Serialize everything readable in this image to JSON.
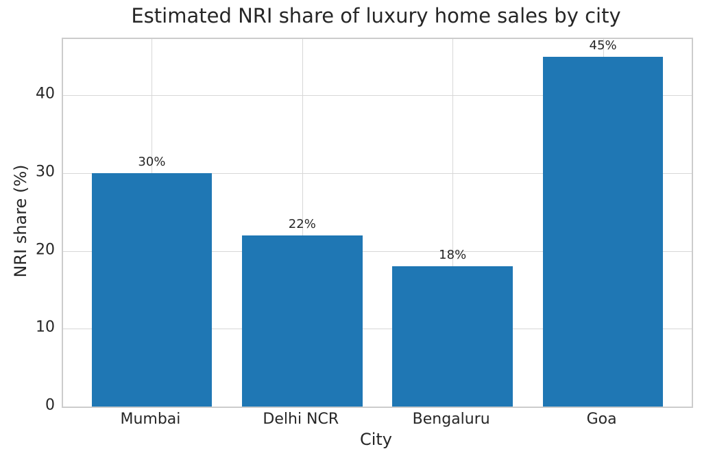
{
  "chart_data": {
    "type": "bar",
    "title": "Estimated NRI share of luxury home sales by city",
    "xlabel": "City",
    "ylabel": "NRI share (%)",
    "categories": [
      "Mumbai",
      "Delhi NCR",
      "Bengaluru",
      "Goa"
    ],
    "values": [
      30,
      22,
      18,
      45
    ],
    "bar_labels": [
      "30%",
      "22%",
      "18%",
      "45%"
    ],
    "bar_color": "#1f77b4",
    "yticks": [
      0,
      10,
      20,
      30,
      40
    ],
    "ylim": [
      0,
      47.25
    ],
    "xlim": [
      -0.59,
      3.59
    ],
    "bar_width": 0.8,
    "grid": true,
    "legend": "none",
    "grid_color": "#d7d7d7",
    "axes_edge_color": "#cccccc",
    "text_color": "#262626",
    "background_color": "#ffffff"
  }
}
